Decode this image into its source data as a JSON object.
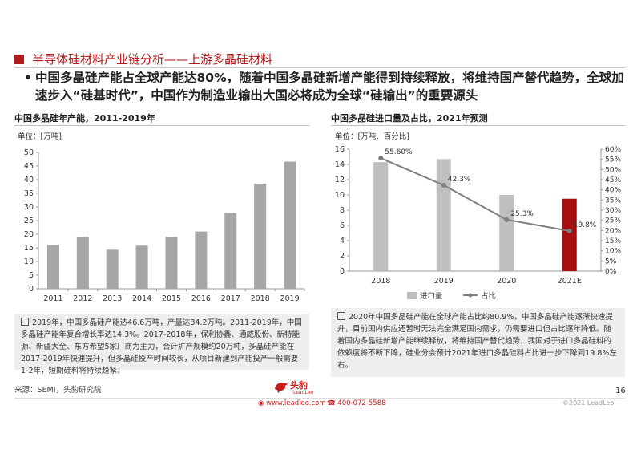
{
  "header": {
    "title": "半导体硅材料产业链分析——上游多晶硅材料",
    "bullet": "中国多晶硅产能占全球产能达80%，随着中国多晶硅新增产能得到持续释放，将维持国产替代趋势，全球加速步入“硅基时代”，中国作为制造业输出大国必将成为全球“硅输出”的重要源头"
  },
  "left_panel": {
    "title": "中国多晶硅年产能，2011-2019年",
    "unit": "单位：[万吨]",
    "note": "2019年，中国多晶硅产能达46.6万吨，产量达34.2万吨。2011-2019年，中国多晶硅产能年复合增长率达14.3%。2017-2018年，保利协鑫、通威股份、新特能源、新疆大全、东方希望5家厂商为主力，合计扩产规模约20万吨，多晶硅产能在2017-2019年快速提升，但多晶硅投产时间较长，从项目新建到产能投产一般需要1-2年，短期硅料将持续趋紧。"
  },
  "right_panel": {
    "title": "中国多晶硅进口量及占比，2021年预测",
    "unit": "单位：[万吨、百分比]",
    "note": "2020年中国多晶硅产能在全球产能占比约80.9%，中国多晶硅产能逐渐快速提升，目前国内供应还暂时无法完全满足国内需求，仍需要进口但占比逐年降低。随着国内多晶硅新增产能继续释放，将维持国产替代趋势，我国对于进口多晶硅料的依赖度将不断下降，硅业分会预计2021年进口多晶硅料占比进一步下降到19.8%左右。"
  },
  "chart_data": [
    {
      "type": "bar",
      "categories": [
        "2011",
        "2012",
        "2013",
        "2014",
        "2015",
        "2016",
        "2017",
        "2018",
        "2019"
      ],
      "values": [
        16,
        19,
        14.3,
        15.8,
        19,
        21,
        27.8,
        38.5,
        46.6
      ],
      "ylim": [
        0,
        50
      ],
      "yticks": [
        0,
        5,
        10,
        15,
        20,
        25,
        30,
        35,
        40,
        45,
        50
      ],
      "grid": false,
      "bar_color": "#a6a6a6"
    },
    {
      "type": "bar+line",
      "categories": [
        "2018",
        "2019",
        "2020",
        "2021E"
      ],
      "series": [
        {
          "name": "进口量",
          "kind": "bar",
          "axis": "left",
          "values": [
            14.3,
            14.7,
            10,
            9.5
          ],
          "colors": [
            "#bfbfbf",
            "#bfbfbf",
            "#bfbfbf",
            "#a50f0f"
          ]
        },
        {
          "name": "占比",
          "kind": "line",
          "axis": "right",
          "values": [
            55.6,
            42.3,
            25.3,
            19.8
          ],
          "labels": [
            "55.60%",
            "42.3%",
            "25.3%",
            "19.8%"
          ],
          "color": "#7f7f7f"
        }
      ],
      "ylim_left": [
        0,
        16
      ],
      "yticks_left": [
        0,
        2,
        4,
        6,
        8,
        10,
        12,
        14,
        16
      ],
      "ylim_right": [
        0,
        60
      ],
      "yticks_right": [
        "0%",
        "5%",
        "10%",
        "15%",
        "20%",
        "25%",
        "30%",
        "35%",
        "40%",
        "45%",
        "50%",
        "55%",
        "60%"
      ],
      "legend_placement": "bottom-left"
    }
  ],
  "footer": {
    "source": "来源：SEMI，头豹研究院",
    "logo_name": "头豹",
    "logo_sub": "LeadLeo",
    "website": "www.leadleo.com",
    "phone": "400-072-5588",
    "page_number": "16",
    "copyright": "©2021 LeadLeo"
  }
}
